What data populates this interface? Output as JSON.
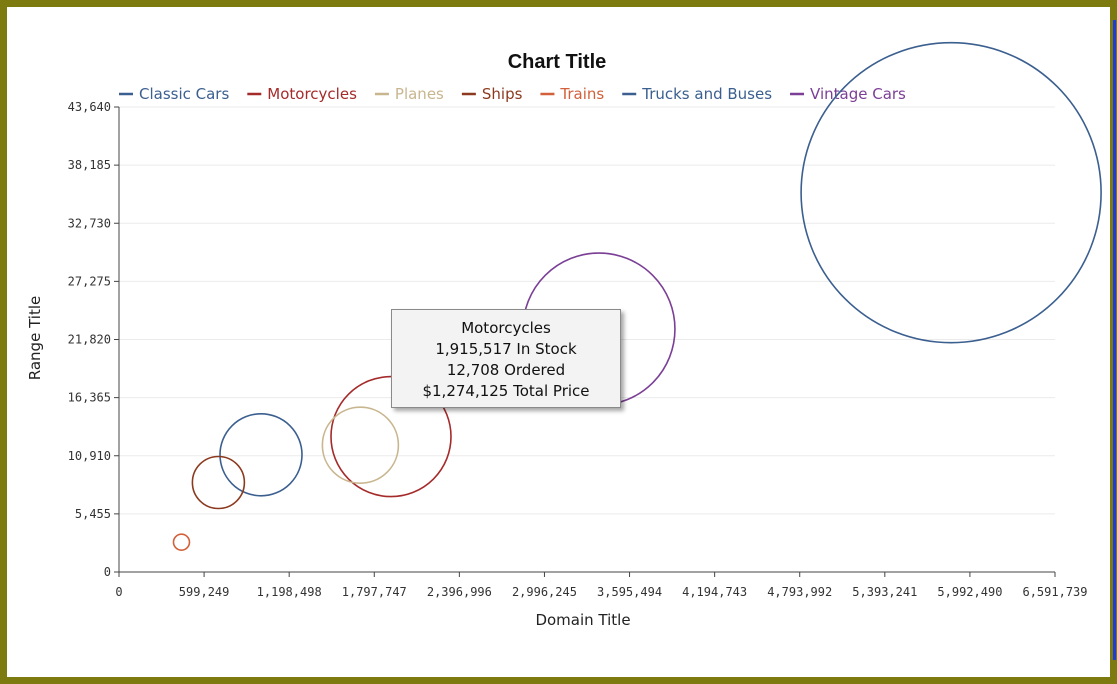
{
  "chart_data": {
    "type": "bubble",
    "title": "Chart Title",
    "xlabel": "Domain Title",
    "ylabel": "Range Title",
    "xlim": [
      0,
      6591739
    ],
    "ylim": [
      0,
      43640
    ],
    "x_ticks": [
      "0",
      "599,249",
      "1,198,498",
      "1,797,747",
      "2,396,996",
      "2,996,245",
      "3,595,494",
      "4,194,743",
      "4,793,992",
      "5,393,241",
      "5,992,490",
      "6,591,739"
    ],
    "y_ticks": [
      "0",
      "5,455",
      "10,910",
      "16,365",
      "21,820",
      "27,275",
      "32,730",
      "38,185",
      "43,640"
    ],
    "y_tick_values": [
      0,
      5455,
      10910,
      16365,
      21820,
      27275,
      32730,
      38185,
      43640
    ],
    "grid": "horizontal",
    "legend_position": "top",
    "series": [
      {
        "name": "Classic Cars",
        "color": "#3b5f8f",
        "x": 1000000,
        "y": 11000,
        "radius": 41
      },
      {
        "name": "Motorcycles",
        "color": "#a52a2a",
        "x": 1915517,
        "y": 12708,
        "radius": 60
      },
      {
        "name": "Planes",
        "color": "#c8b68f",
        "x": 1700000,
        "y": 11900,
        "radius": 38
      },
      {
        "name": "Ships",
        "color": "#8b3a1f",
        "x": 700000,
        "y": 8400,
        "radius": 26
      },
      {
        "name": "Trains",
        "color": "#d2603a",
        "x": 440000,
        "y": 2800,
        "radius": 8
      },
      {
        "name": "Trucks and Buses",
        "color": "#3b5f8f",
        "x": 5860000,
        "y": 35600,
        "radius": 150
      },
      {
        "name": "Vintage Cars",
        "color": "#7b3f96",
        "x": 3380000,
        "y": 22800,
        "radius": 76
      }
    ]
  },
  "tooltip": {
    "line1": "Motorcycles",
    "line2": "1,915,517 In Stock",
    "line3": "12,708 Ordered",
    "line4": "$1,274,125 Total Price"
  }
}
